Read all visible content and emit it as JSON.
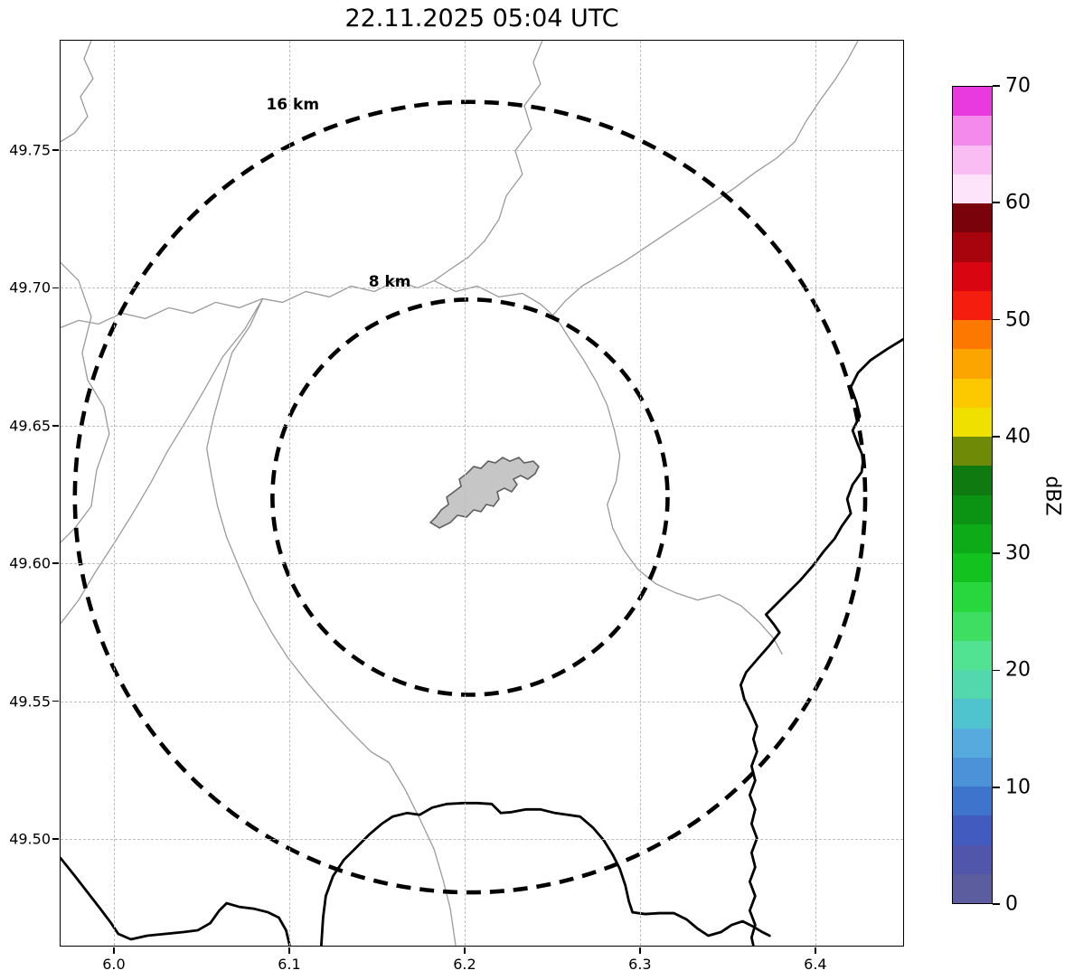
{
  "title": "22.11.2025 05:04 UTC",
  "chart_data": {
    "type": "map",
    "subtype": "radar-range-ring-map",
    "timestamp": "22.11.2025 05:04 UTC",
    "x_axis": {
      "tick_labels": [
        "6.0",
        "6.1",
        "6.2",
        "6.3",
        "6.4"
      ],
      "range": [
        5.9696,
        6.4511
      ]
    },
    "y_axis": {
      "tick_labels": [
        "49.75",
        "49.70",
        "49.65",
        "49.60",
        "49.55",
        "49.50"
      ],
      "range": [
        49.4606,
        49.7897
      ]
    },
    "radar_center": {
      "lon": 6.2036,
      "lat": 49.6237
    },
    "range_rings": [
      {
        "label": "16 km",
        "radius_km": 16
      },
      {
        "label": "8 km",
        "radius_km": 8
      }
    ],
    "colorbar": {
      "label": "dBZ",
      "min": 0,
      "max": 70,
      "step": 2.5,
      "ticks": [
        0,
        10,
        20,
        30,
        40,
        50,
        60,
        70
      ],
      "colors_bottom_to_top": [
        "#5c5d9e",
        "#5156aa",
        "#415cbe",
        "#3e74cb",
        "#4b92d8",
        "#57aadd",
        "#4fc4cf",
        "#53d7ad",
        "#51e392",
        "#3ede63",
        "#28d73d",
        "#13c21f",
        "#0dab18",
        "#0b9314",
        "#0e7a10",
        "#6f8a06",
        "#f0e000",
        "#fcc800",
        "#fca400",
        "#fc7800",
        "#f51d0e",
        "#d90511",
        "#a8040e",
        "#7a030b",
        "#fde4fb",
        "#f9bdf4",
        "#f48aec",
        "#e93adf"
      ]
    }
  }
}
